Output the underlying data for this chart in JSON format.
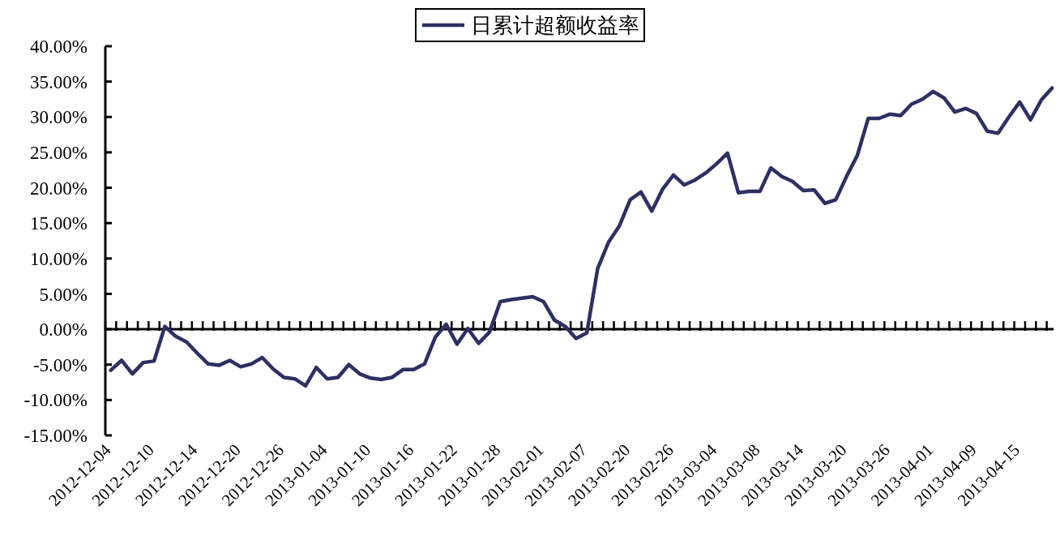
{
  "chart_data": {
    "type": "line",
    "categories": [
      "2012-12-04",
      null,
      null,
      null,
      "2012-12-10",
      null,
      null,
      null,
      "2012-12-14",
      null,
      null,
      null,
      "2012-12-20",
      null,
      null,
      null,
      "2012-12-26",
      null,
      null,
      null,
      "2013-01-04",
      null,
      null,
      null,
      "2013-01-10",
      null,
      null,
      null,
      "2013-01-16",
      null,
      null,
      null,
      "2013-01-22",
      null,
      null,
      null,
      "2013-01-28",
      null,
      null,
      null,
      "2013-02-01",
      null,
      null,
      null,
      "2013-02-07",
      null,
      null,
      null,
      "2013-02-20",
      null,
      null,
      null,
      "2013-02-26",
      null,
      null,
      null,
      "2013-03-04",
      null,
      null,
      null,
      "2013-03-08",
      null,
      null,
      null,
      "2013-03-14",
      null,
      null,
      null,
      "2013-03-20",
      null,
      null,
      null,
      "2013-03-26",
      null,
      null,
      null,
      "2013-04-01",
      null,
      null,
      null,
      "2013-04-09",
      null,
      null,
      null,
      "2013-04-15",
      null,
      null,
      null
    ],
    "series": [
      {
        "name": "日累计超额收益率",
        "color": "#2e2f62",
        "values": [
          -5.8,
          -4.4,
          -6.3,
          -4.7,
          -4.5,
          0.4,
          -1.0,
          -1.8,
          -3.4,
          -4.9,
          -5.1,
          -4.4,
          -5.3,
          -4.9,
          -4.0,
          -5.6,
          -6.8,
          -7.0,
          -8.0,
          -5.4,
          -7.0,
          -6.8,
          -5.0,
          -6.3,
          -6.9,
          -7.1,
          -6.8,
          -5.7,
          -5.7,
          -4.9,
          -1.1,
          0.7,
          -2.1,
          0.1,
          -2.0,
          -0.4,
          3.9,
          4.2,
          4.4,
          4.6,
          3.9,
          1.3,
          0.4,
          -1.3,
          -0.5,
          8.6,
          12.3,
          14.6,
          18.3,
          19.4,
          16.7,
          19.8,
          21.8,
          20.4,
          21.1,
          22.1,
          23.4,
          24.9,
          19.3,
          19.5,
          19.5,
          22.8,
          21.6,
          20.9,
          19.6,
          19.7,
          17.8,
          18.3,
          21.6,
          24.6,
          29.8,
          29.8,
          30.4,
          30.2,
          31.8,
          32.5,
          33.6,
          32.7,
          30.7,
          31.2,
          30.5,
          28.0,
          27.7,
          30.0,
          32.1,
          29.6,
          32.4,
          34.1
        ]
      }
    ],
    "ylim": [
      -15,
      40
    ],
    "yticks": [
      {
        "value": -15,
        "label": "-15.00%"
      },
      {
        "value": -10,
        "label": "-10.00%"
      },
      {
        "value": -5,
        "label": "-5.00%"
      },
      {
        "value": 0,
        "label": "0.00%"
      },
      {
        "value": 5,
        "label": "5.00%"
      },
      {
        "value": 10,
        "label": "10.00%"
      },
      {
        "value": 15,
        "label": "15.00%"
      },
      {
        "value": 20,
        "label": "20.00%"
      },
      {
        "value": 25,
        "label": "25.00%"
      },
      {
        "value": 30,
        "label": "30.00%"
      },
      {
        "value": 35,
        "label": "35.00%"
      },
      {
        "value": 40,
        "label": "40.00%"
      }
    ],
    "legend": "top",
    "marker": "none",
    "line_style": "solid"
  }
}
